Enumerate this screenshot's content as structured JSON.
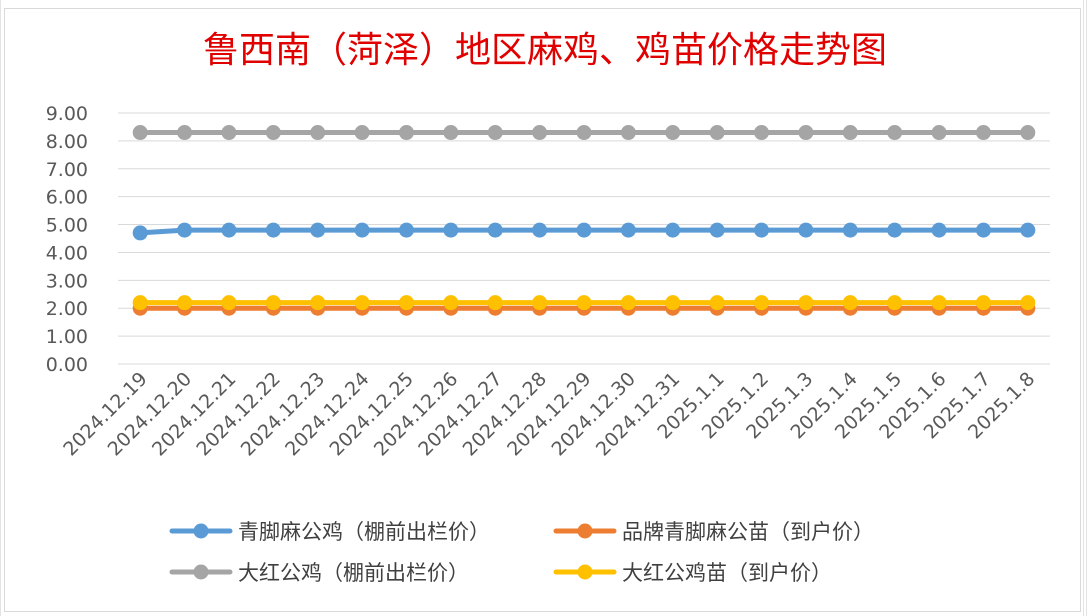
{
  "chart_data": {
    "type": "line",
    "title": "鲁西南（菏泽）地区麻鸡、鸡苗价格走势图",
    "title_color": "#e00000",
    "categories": [
      "2024.12.19",
      "2024.12.20",
      "2024.12.21",
      "2024.12.22",
      "2024.12.23",
      "2024.12.24",
      "2024.12.25",
      "2024.12.26",
      "2024.12.27",
      "2024.12.28",
      "2024.12.29",
      "2024.12.30",
      "2024.12.31",
      "2025.1.1",
      "2025.1.2",
      "2025.1.3",
      "2025.1.4",
      "2025.1.5",
      "2025.1.6",
      "2025.1.7",
      "2025.1.8"
    ],
    "ylim": [
      0,
      9
    ],
    "ytick_step": 1,
    "ytick_labels": [
      "0.00",
      "1.00",
      "2.00",
      "3.00",
      "4.00",
      "5.00",
      "6.00",
      "7.00",
      "8.00",
      "9.00"
    ],
    "grid": true,
    "legend_position": "bottom",
    "series": [
      {
        "name": "青脚麻公鸡（棚前出栏价）",
        "color": "#5b9bd5",
        "values": [
          4.7,
          4.8,
          4.8,
          4.8,
          4.8,
          4.8,
          4.8,
          4.8,
          4.8,
          4.8,
          4.8,
          4.8,
          4.8,
          4.8,
          4.8,
          4.8,
          4.8,
          4.8,
          4.8,
          4.8,
          4.8
        ]
      },
      {
        "name": "品牌青脚麻公苗（到户价）",
        "color": "#ed7d31",
        "values": [
          2.0,
          2.0,
          2.0,
          2.0,
          2.0,
          2.0,
          2.0,
          2.0,
          2.0,
          2.0,
          2.0,
          2.0,
          2.0,
          2.0,
          2.0,
          2.0,
          2.0,
          2.0,
          2.0,
          2.0,
          2.0
        ]
      },
      {
        "name": "大红公鸡（棚前出栏价）",
        "color": "#a5a5a5",
        "values": [
          8.3,
          8.3,
          8.3,
          8.3,
          8.3,
          8.3,
          8.3,
          8.3,
          8.3,
          8.3,
          8.3,
          8.3,
          8.3,
          8.3,
          8.3,
          8.3,
          8.3,
          8.3,
          8.3,
          8.3,
          8.3
        ]
      },
      {
        "name": "大红公鸡苗（到户价）",
        "color": "#ffc000",
        "values": [
          2.2,
          2.2,
          2.2,
          2.2,
          2.2,
          2.2,
          2.2,
          2.2,
          2.2,
          2.2,
          2.2,
          2.2,
          2.2,
          2.2,
          2.2,
          2.2,
          2.2,
          2.2,
          2.2,
          2.2,
          2.2
        ]
      }
    ]
  }
}
